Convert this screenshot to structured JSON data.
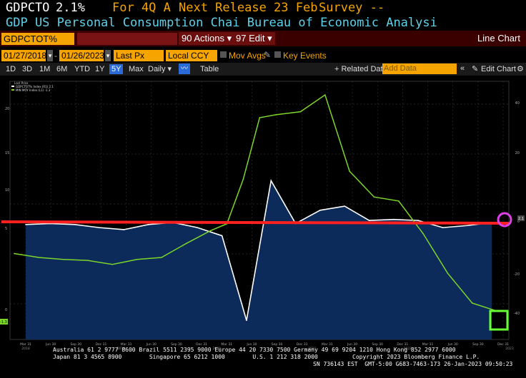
{
  "header": {
    "ticker": "GDPCTO",
    "value": "2.1%",
    "period": "For 4Q A",
    "next_release": "Next Release 23 Feb",
    "survey": "Survey --",
    "subtitle": "GDP US Personal Consumption Chai Bureau of Economic Analysi"
  },
  "toolbar": {
    "security": "GDPCTOT% Index",
    "hidden_field": "",
    "actions": "90 Actions ▾",
    "edit": "97 Edit ▾",
    "view_title": "Line Chart"
  },
  "controls": {
    "start_date": "01/27/2018",
    "end_date": "01/26/2023",
    "field": "Last Px",
    "currency": "Local CCY",
    "mov_avgs": "Mov Avgs",
    "key_events": "Key Events"
  },
  "periods": {
    "items": [
      "1D",
      "3D",
      "1M",
      "6M",
      "YTD",
      "1Y",
      "5Y",
      "Max"
    ],
    "active": "5Y",
    "frequency": "Daily ▾",
    "table": "Table",
    "related": "+ Related Dat",
    "add_data_placeholder": "Add Data",
    "edit_chart": "Edit Chart"
  },
  "legend": {
    "header": "Last Price",
    "series1": "GDPCTOT% Index (R1)  2.1",
    "series2": "MIN MOY Index (L1)  -1.3"
  },
  "colors": {
    "area_fill": "#0c2a5a",
    "white_line": "#ffffff",
    "green_line": "#7cd62a",
    "red_line": "#ff2020",
    "annotation_circle": "#e040e8",
    "annotation_box": "#66ff33",
    "orange": "#f5a400"
  },
  "chart_data": {
    "type": "line",
    "series": [
      {
        "name": "GDPCTOT% Index (R1)",
        "axis": "right",
        "x": [
          "2018-01",
          "2018-04",
          "2018-07",
          "2018-10",
          "2019-01",
          "2019-04",
          "2019-07",
          "2019-10",
          "2020-01",
          "2020-04",
          "2020-07",
          "2020-10",
          "2021-01",
          "2021-04",
          "2021-07",
          "2021-10",
          "2022-01",
          "2022-04",
          "2022-07",
          "2022-10"
        ],
        "values": [
          1.9,
          2.0,
          1.9,
          1.6,
          1.4,
          1.9,
          2.1,
          1.6,
          0.8,
          -7.5,
          6.2,
          2.0,
          3.3,
          3.7,
          2.3,
          2.4,
          2.3,
          1.6,
          1.8,
          2.1
        ]
      },
      {
        "name": "MIN MOY Index (L1)",
        "axis": "left",
        "x": [
          "2018-01",
          "2018-04",
          "2018-07",
          "2018-10",
          "2019-01",
          "2019-04",
          "2019-07",
          "2019-10",
          "2020-01",
          "2020-03",
          "2020-05",
          "2020-07",
          "2020-09",
          "2020-12",
          "2021-03",
          "2021-06",
          "2021-09",
          "2021-12",
          "2022-03",
          "2022-06",
          "2022-09",
          "2022-12"
        ],
        "values": [
          4.5,
          4.1,
          3.9,
          3.8,
          3.4,
          3.9,
          4.1,
          5.5,
          6.8,
          7.5,
          12.0,
          18.2,
          18.5,
          18.8,
          20.5,
          12.8,
          10.2,
          9.8,
          6.5,
          2.5,
          -0.5,
          -1.3
        ]
      }
    ],
    "left_axis_ticks": [
      "20",
      "15",
      "10",
      "5",
      "0"
    ],
    "right_axis_ticks": [
      "40",
      "20",
      "0",
      "-20",
      "-40"
    ],
    "x_ticks": [
      "Mar 31",
      "Jun 30",
      "Sep 30",
      "Dec 31",
      "Mar 31",
      "Jun 30",
      "Sep 30",
      "Dec 31",
      "Mar 31",
      "Jun 30",
      "Sep 30",
      "Dec 31",
      "Mar 31",
      "Jun 30",
      "Sep 30",
      "Dec 31",
      "Mar 31",
      "Jun 30",
      "Sep 30",
      "Dec 31"
    ],
    "x_years": [
      "2018",
      "2019",
      "2020",
      "2021",
      "2022",
      "2023"
    ],
    "last_labels": {
      "right": "2.1",
      "left": "-1.3"
    }
  },
  "footer": {
    "line1": "Australia 61 2 9777 8600 Brazil 5511 2395 9000 Europe 44 20 7330 7500 Germany 49 69 9204 1210 Hong Kong 852 2977 6000",
    "line2": "Japan 81 3 4565 8900        Singapore 65 6212 1000        U.S. 1 212 318 2000          Copyright 2023 Bloomberg Finance L.P.",
    "line3": "SN 736143 EST  GMT-5:00 G683-7463-173 26-Jan-2023 09:50:23"
  }
}
